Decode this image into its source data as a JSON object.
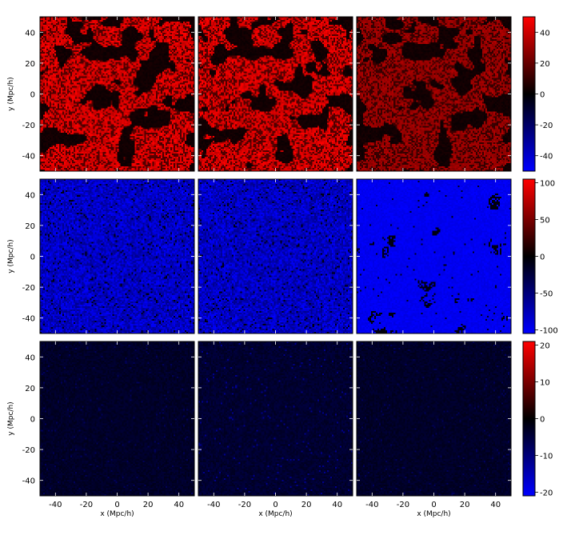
{
  "chart_data": [
    {
      "type": "heatmap",
      "rows": 3,
      "cols": 3,
      "xlabel": "x (Mpc/h)",
      "ylabel": "y (Mpc/h)",
      "xlim": [
        -50,
        50
      ],
      "ylim": [
        -50,
        50
      ],
      "x_ticks": [
        -40,
        -20,
        0,
        20,
        40
      ],
      "y_ticks": [
        40,
        20,
        0,
        -20,
        -40
      ],
      "panel_rows": [
        {
          "colorbar": {
            "range": [
              -50,
              50
            ],
            "ticks": [
              40,
              20,
              0,
              -20,
              -40
            ],
            "colors": [
              "#0000ff",
              "#000000",
              "#ff0000"
            ]
          },
          "panels": [
            {
              "style": "red-voids"
            },
            {
              "style": "red-voids"
            },
            {
              "style": "red-voids-faint"
            }
          ]
        },
        {
          "colorbar": {
            "range": [
              -105,
              105
            ],
            "ticks": [
              100,
              50,
              0,
              -50,
              -100
            ],
            "colors": [
              "#0000ff",
              "#000000",
              "#ff0000"
            ]
          },
          "panels": [
            {
              "style": "blue-speckle"
            },
            {
              "style": "blue-speckle"
            },
            {
              "style": "blue-blobs"
            }
          ]
        },
        {
          "colorbar": {
            "range": [
              -21,
              21
            ],
            "ticks": [
              20,
              10,
              0,
              -10,
              -20
            ],
            "colors": [
              "#0000ff",
              "#000000",
              "#ff0000"
            ]
          },
          "panels": [
            {
              "style": "dark-faint"
            },
            {
              "style": "dark-spots"
            },
            {
              "style": "dark-faint"
            }
          ]
        }
      ]
    }
  ]
}
